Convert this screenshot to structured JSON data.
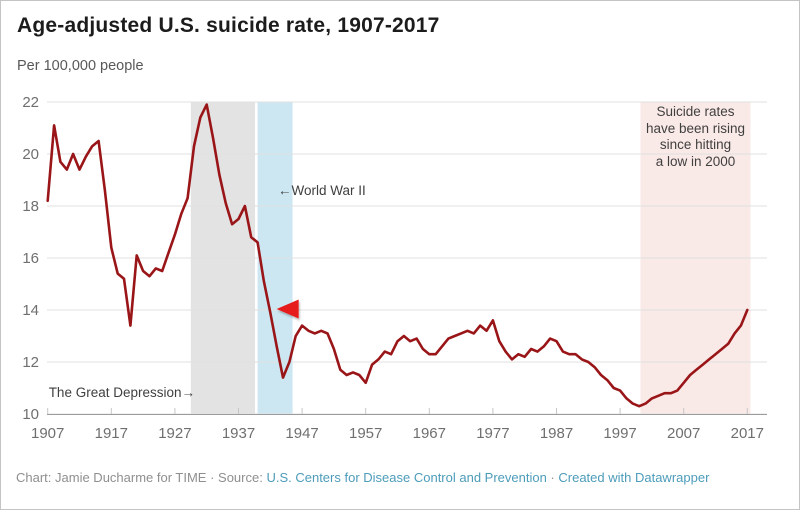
{
  "title": "Age-adjusted U.S. suicide rate, 1907-2017",
  "subtitle": "Per 100,000 people",
  "annotations": {
    "depression": "The Great Depression→",
    "wwii": "←World War II",
    "rising": [
      "Suicide rates",
      "have been rising",
      "since hitting",
      "a low in 2000"
    ]
  },
  "footer": {
    "prefix": "Chart: Jamie Ducharme for TIME · Source: ",
    "source_link": "U.S. Centers for Disease Control and Prevention",
    "separator": " · ",
    "datawrapper_link": "Created with Datawrapper"
  },
  "colors": {
    "line": "#991518",
    "arrow": "#e61a1d",
    "depression_band": "#e3e3e3",
    "wwii_band": "#cde7f2",
    "rising_band": "#faeae7",
    "grid": "#e0e0e0",
    "axis": "#9c9c9c",
    "tick": "#c6c6c6",
    "tick_label": "#6f6f6f"
  },
  "chart_data": {
    "type": "line",
    "title": "Age-adjusted U.S. suicide rate, 1907-2017",
    "ylabel": "Per 100,000 people",
    "xlabel": "",
    "xlim": [
      1907,
      2017
    ],
    "ylim": [
      10,
      22
    ],
    "x_ticks": [
      1907,
      1917,
      1927,
      1937,
      1947,
      1957,
      1967,
      1977,
      1987,
      1997,
      2007,
      2017
    ],
    "y_ticks": [
      10,
      12,
      14,
      16,
      18,
      20,
      22
    ],
    "grid": "horizontal",
    "legend": "none",
    "series": [
      {
        "name": "Age-adjusted suicide rate per 100,000 people",
        "x_start_year": 1907,
        "x_step": 1,
        "years": [
          1907,
          1908,
          1909,
          1910,
          1911,
          1912,
          1913,
          1914,
          1915,
          1916,
          1917,
          1918,
          1919,
          1920,
          1921,
          1922,
          1923,
          1924,
          1925,
          1926,
          1927,
          1928,
          1929,
          1930,
          1931,
          1932,
          1933,
          1934,
          1935,
          1936,
          1937,
          1938,
          1939,
          1940,
          1941,
          1942,
          1943,
          1944,
          1945,
          1946,
          1947,
          1948,
          1949,
          1950,
          1951,
          1952,
          1953,
          1954,
          1955,
          1956,
          1957,
          1958,
          1959,
          1960,
          1961,
          1962,
          1963,
          1964,
          1965,
          1966,
          1967,
          1968,
          1969,
          1970,
          1971,
          1972,
          1973,
          1974,
          1975,
          1976,
          1977,
          1978,
          1979,
          1980,
          1981,
          1982,
          1983,
          1984,
          1985,
          1986,
          1987,
          1988,
          1989,
          1990,
          1991,
          1992,
          1993,
          1994,
          1995,
          1996,
          1997,
          1998,
          1999,
          2000,
          2001,
          2002,
          2003,
          2004,
          2005,
          2006,
          2007,
          2008,
          2009,
          2010,
          2011,
          2012,
          2013,
          2014,
          2015,
          2016,
          2017
        ],
        "values": [
          18.2,
          21.1,
          19.7,
          19.4,
          20.0,
          19.4,
          19.9,
          20.3,
          20.5,
          18.6,
          16.4,
          15.4,
          15.2,
          13.4,
          16.1,
          15.5,
          15.3,
          15.6,
          15.5,
          16.2,
          16.9,
          17.7,
          18.3,
          20.3,
          21.4,
          21.9,
          20.6,
          19.2,
          18.1,
          17.3,
          17.5,
          18.0,
          16.8,
          16.6,
          15.1,
          13.9,
          12.6,
          11.4,
          12.0,
          13.0,
          13.4,
          13.2,
          13.1,
          13.2,
          13.1,
          12.5,
          11.7,
          11.5,
          11.6,
          11.5,
          11.2,
          11.9,
          12.1,
          12.4,
          12.3,
          12.8,
          13.0,
          12.8,
          12.9,
          12.5,
          12.3,
          12.3,
          12.6,
          12.9,
          13.0,
          13.1,
          13.2,
          13.1,
          13.4,
          13.2,
          13.6,
          12.8,
          12.4,
          12.1,
          12.3,
          12.2,
          12.5,
          12.4,
          12.6,
          12.9,
          12.8,
          12.4,
          12.3,
          12.3,
          12.1,
          12.0,
          11.8,
          11.5,
          11.3,
          11.0,
          10.9,
          10.6,
          10.4,
          10.3,
          10.4,
          10.6,
          10.7,
          10.8,
          10.8,
          10.9,
          11.2,
          11.5,
          11.7,
          11.9,
          12.1,
          12.3,
          12.5,
          12.7,
          13.1,
          13.4,
          14.0
        ]
      }
    ],
    "bands": [
      {
        "name": "The Great Depression",
        "from": 1929.5,
        "to": 1939.6,
        "color": "#e3e3e3"
      },
      {
        "name": "World War II",
        "from": 1940.0,
        "to": 1945.5,
        "color": "#cde7f2"
      },
      {
        "name": "Rising since a low in 2000",
        "from": 2000.2,
        "to": 2017.5,
        "color": "#faeae7"
      }
    ],
    "arrow": {
      "value": 14,
      "from_year": 2017,
      "to_year": 1943,
      "direction": "left",
      "color": "#e61a1d"
    }
  }
}
